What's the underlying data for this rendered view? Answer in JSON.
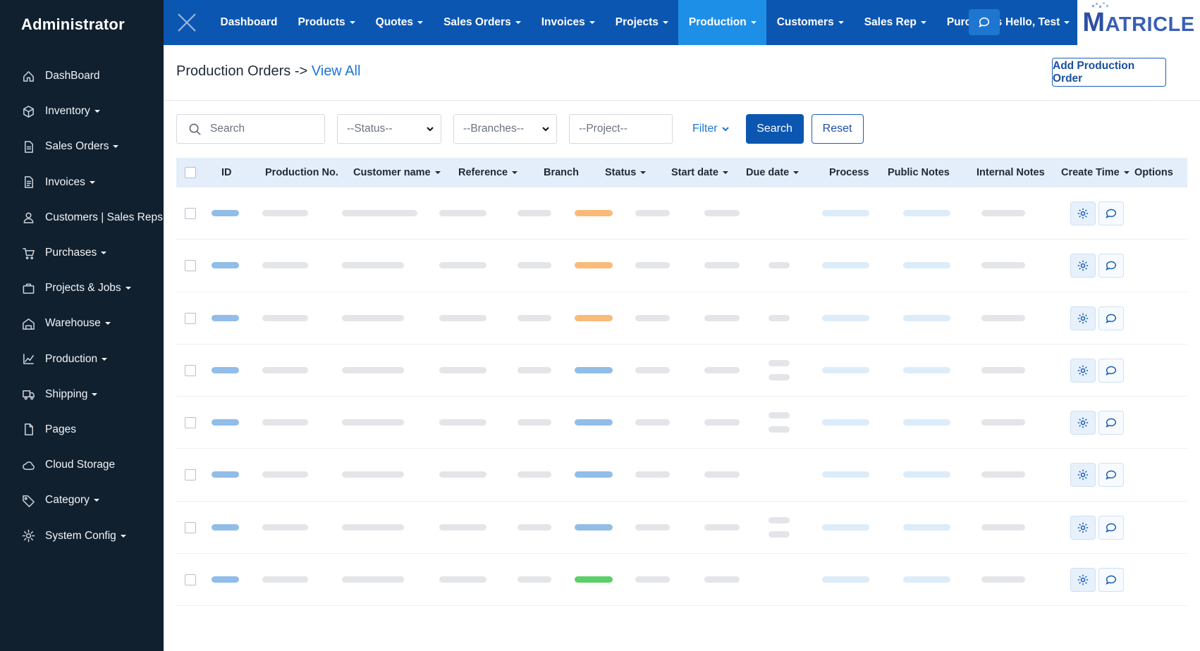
{
  "sidebar": {
    "brand": "Administrator",
    "items": [
      {
        "label": "DashBoard",
        "icon": "home-icon",
        "caret": false
      },
      {
        "label": "Inventory",
        "icon": "box-icon",
        "caret": true
      },
      {
        "label": "Sales Orders",
        "icon": "document-icon",
        "caret": true
      },
      {
        "label": "Invoices",
        "icon": "invoice-icon",
        "caret": true
      },
      {
        "label": "Customers | Sales Reps",
        "icon": "user-icon",
        "caret": false
      },
      {
        "label": "Purchases",
        "icon": "cart-icon",
        "caret": true
      },
      {
        "label": "Projects & Jobs",
        "icon": "briefcase-icon",
        "caret": true
      },
      {
        "label": "Warehouse",
        "icon": "warehouse-icon",
        "caret": true
      },
      {
        "label": "Production",
        "icon": "chart-icon",
        "caret": true
      },
      {
        "label": "Shipping",
        "icon": "truck-icon",
        "caret": true
      },
      {
        "label": "Pages",
        "icon": "page-icon",
        "caret": false
      },
      {
        "label": "Cloud Storage",
        "icon": "cloud-icon",
        "caret": false
      },
      {
        "label": "Category",
        "icon": "tag-icon",
        "caret": true
      },
      {
        "label": "System Config",
        "icon": "gear-icon",
        "caret": true
      }
    ]
  },
  "topnav": {
    "items": [
      {
        "label": "Dashboard",
        "caret": false,
        "active": false
      },
      {
        "label": "Products",
        "caret": true,
        "active": false
      },
      {
        "label": "Quotes",
        "caret": true,
        "active": false
      },
      {
        "label": "Sales Orders",
        "caret": true,
        "active": false
      },
      {
        "label": "Invoices",
        "caret": true,
        "active": false
      },
      {
        "label": "Projects",
        "caret": true,
        "active": false
      },
      {
        "label": "Production",
        "caret": true,
        "active": true
      },
      {
        "label": "Customers",
        "caret": true,
        "active": false
      },
      {
        "label": "Sales Rep",
        "caret": true,
        "active": false
      },
      {
        "label": "Purchases",
        "caret": false,
        "active": false
      }
    ],
    "greeting": "Hello, Test",
    "logo_text": "ATRICLE",
    "logo_initial": "M"
  },
  "page": {
    "title": "Production Orders ->",
    "title_link": "View All",
    "add_button": "Add Production Order"
  },
  "filters": {
    "search_placeholder": "Search",
    "status": "--Status--",
    "branches": "--Branches--",
    "project_placeholder": "--Project--",
    "filter_label": "Filter",
    "search_button": "Search",
    "reset_button": "Reset"
  },
  "table": {
    "columns": [
      {
        "label": "ID",
        "sortable": false
      },
      {
        "label": "Production No.",
        "sortable": false
      },
      {
        "label": "Customer name",
        "sortable": true
      },
      {
        "label": "Reference",
        "sortable": true
      },
      {
        "label": "Branch",
        "sortable": false
      },
      {
        "label": "Status",
        "sortable": true
      },
      {
        "label": "Start date",
        "sortable": true
      },
      {
        "label": "Due date",
        "sortable": true
      },
      {
        "label": "Process",
        "sortable": false
      },
      {
        "label": "Public Notes",
        "sortable": false
      },
      {
        "label": "Internal Notes",
        "sortable": false
      },
      {
        "label": "Create Time",
        "sortable": true
      },
      {
        "label": "Options",
        "sortable": false
      }
    ],
    "rows": [
      {
        "status_color": "orange",
        "process_lines": 0,
        "customer_wide": true
      },
      {
        "status_color": "orange",
        "process_lines": 1,
        "customer_wide": false
      },
      {
        "status_color": "orange",
        "process_lines": 1,
        "customer_wide": false
      },
      {
        "status_color": "blue",
        "process_lines": 2,
        "customer_wide": false
      },
      {
        "status_color": "blue",
        "process_lines": 2,
        "customer_wide": false
      },
      {
        "status_color": "blue",
        "process_lines": 0,
        "customer_wide": false
      },
      {
        "status_color": "blue",
        "process_lines": 2,
        "customer_wide": false
      },
      {
        "status_color": "green",
        "process_lines": 0,
        "customer_wide": false
      }
    ]
  },
  "colors": {
    "sidebar_bg": "#10202f",
    "topbar_bg": "#0b56b0",
    "active_nav": "#1e8fe6",
    "status_orange": "#f8bb79",
    "status_blue": "#92bde8",
    "status_green": "#5ccf6a"
  }
}
